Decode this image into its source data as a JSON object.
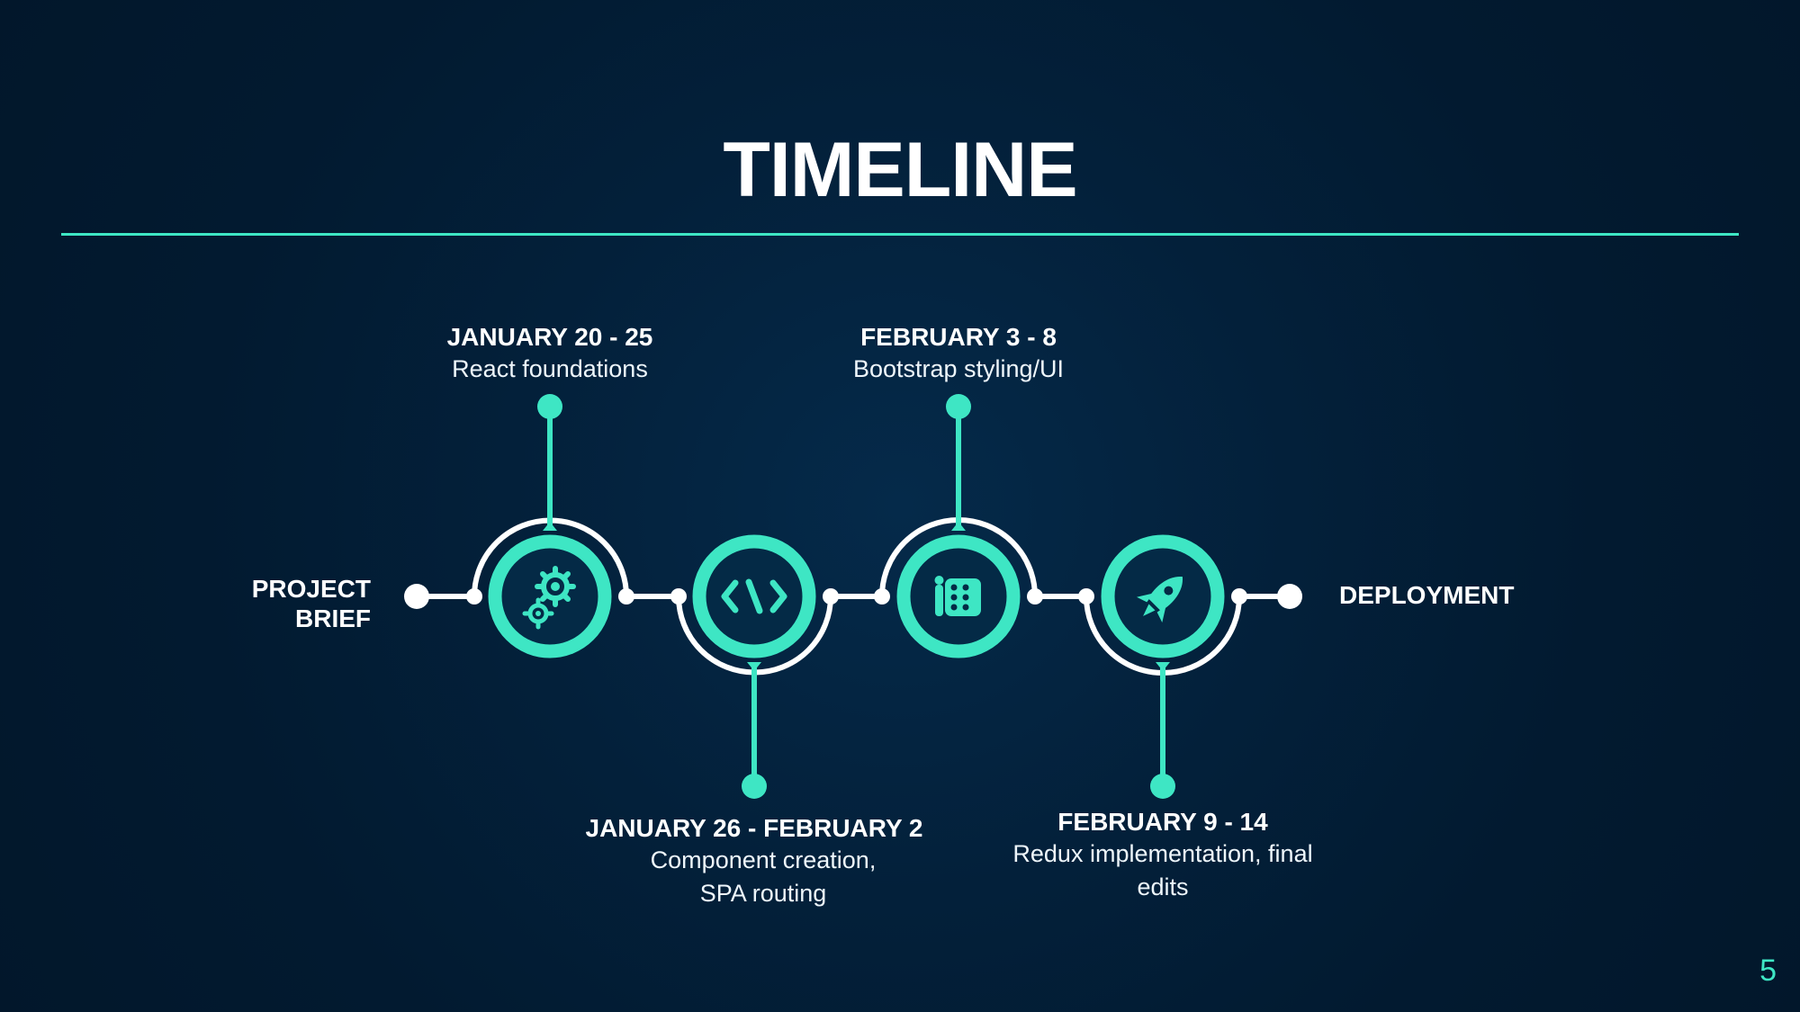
{
  "title": "TIMELINE",
  "page_number": "5",
  "start_label": {
    "line1": "PROJECT",
    "line2": "BRIEF"
  },
  "end_label": "DEPLOYMENT",
  "milestones": [
    {
      "date": "JANUARY 20 - 25",
      "desc1": "React foundations",
      "desc2": "",
      "icon": "gears-icon",
      "position": "top"
    },
    {
      "date": "JANUARY 26 - FEBRUARY 2",
      "desc1": "Component creation,",
      "desc2": "SPA routing",
      "icon": "code-icon",
      "position": "bottom"
    },
    {
      "date": "FEBRUARY 3 - 8",
      "desc1": "Bootstrap styling/UI",
      "desc2": "",
      "icon": "palette-grid-icon",
      "position": "top"
    },
    {
      "date": "FEBRUARY 9 - 14",
      "desc1": "Redux implementation, final",
      "desc2": "edits",
      "icon": "rocket-icon",
      "position": "bottom"
    }
  ],
  "colors": {
    "accent": "#3ee6c4",
    "background": "#03203a",
    "line": "#ffffff"
  }
}
